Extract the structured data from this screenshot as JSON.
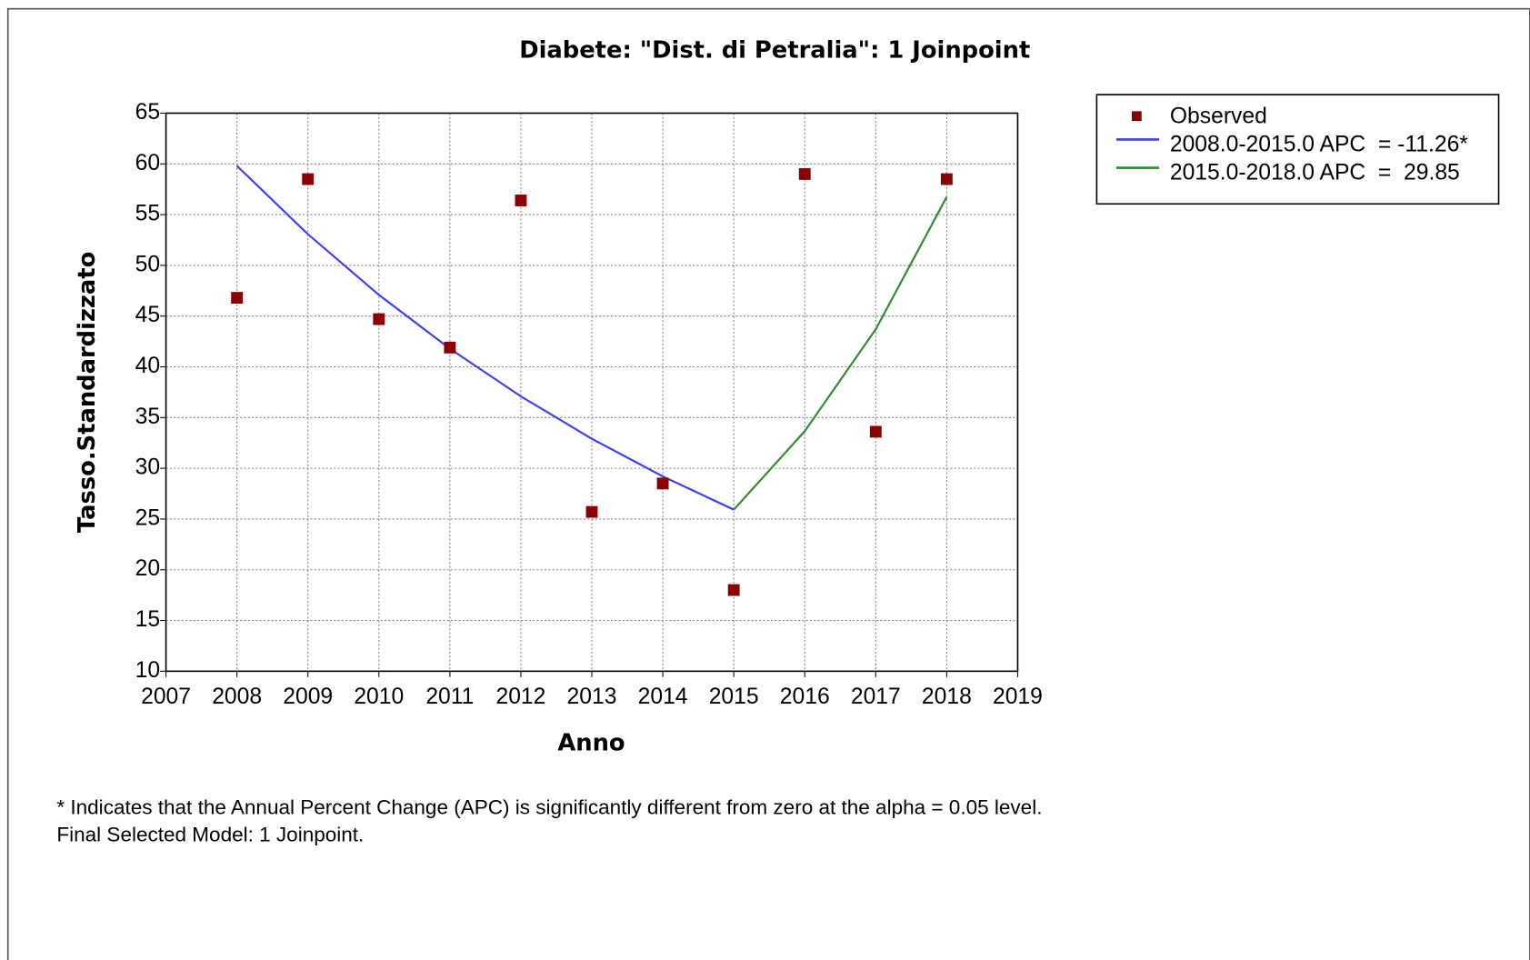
{
  "chart_data": {
    "type": "line",
    "title": "Diabete: \"Dist. di Petralia\": 1 Joinpoint",
    "x_label": "Anno",
    "y_label": "Tasso.Standardizzato",
    "xlim": [
      2007,
      2019
    ],
    "xticks": [
      2007,
      2008,
      2009,
      2010,
      2011,
      2012,
      2013,
      2014,
      2015,
      2016,
      2017,
      2018,
      2019
    ],
    "ylim": [
      10,
      65
    ],
    "yticks": [
      10,
      15,
      20,
      25,
      30,
      35,
      40,
      45,
      50,
      55,
      60,
      65
    ],
    "grid": true,
    "legend": "right",
    "series": [
      {
        "name": "Observed",
        "mode": "markers",
        "color": "#8b0000",
        "x": [
          2008,
          2009,
          2010,
          2011,
          2012,
          2013,
          2014,
          2015,
          2016,
          2017,
          2018
        ],
        "values": [
          46.8,
          58.5,
          44.7,
          41.9,
          56.4,
          25.7,
          28.5,
          18.0,
          59.0,
          33.6,
          58.5
        ]
      },
      {
        "name": "2008.0-2015.0 APC  = -11.26*",
        "mode": "lines",
        "color": "#3c3cff",
        "x": [
          2008,
          2009,
          2010,
          2011,
          2012,
          2013,
          2014,
          2015
        ],
        "values": [
          59.8,
          53.07,
          47.09,
          41.79,
          37.09,
          32.91,
          29.2,
          25.92
        ]
      },
      {
        "name": "2015.0-2018.0 APC  =  29.85",
        "mode": "lines",
        "color": "#2e8b2e",
        "x": [
          2015,
          2016,
          2017,
          2018
        ],
        "values": [
          25.92,
          33.66,
          43.7,
          56.75
        ]
      }
    ],
    "footnotes": [
      "* Indicates that the Annual Percent Change (APC) is significantly different from zero at the alpha = 0.05 level.",
      "Final Selected Model: 1 Joinpoint."
    ]
  }
}
